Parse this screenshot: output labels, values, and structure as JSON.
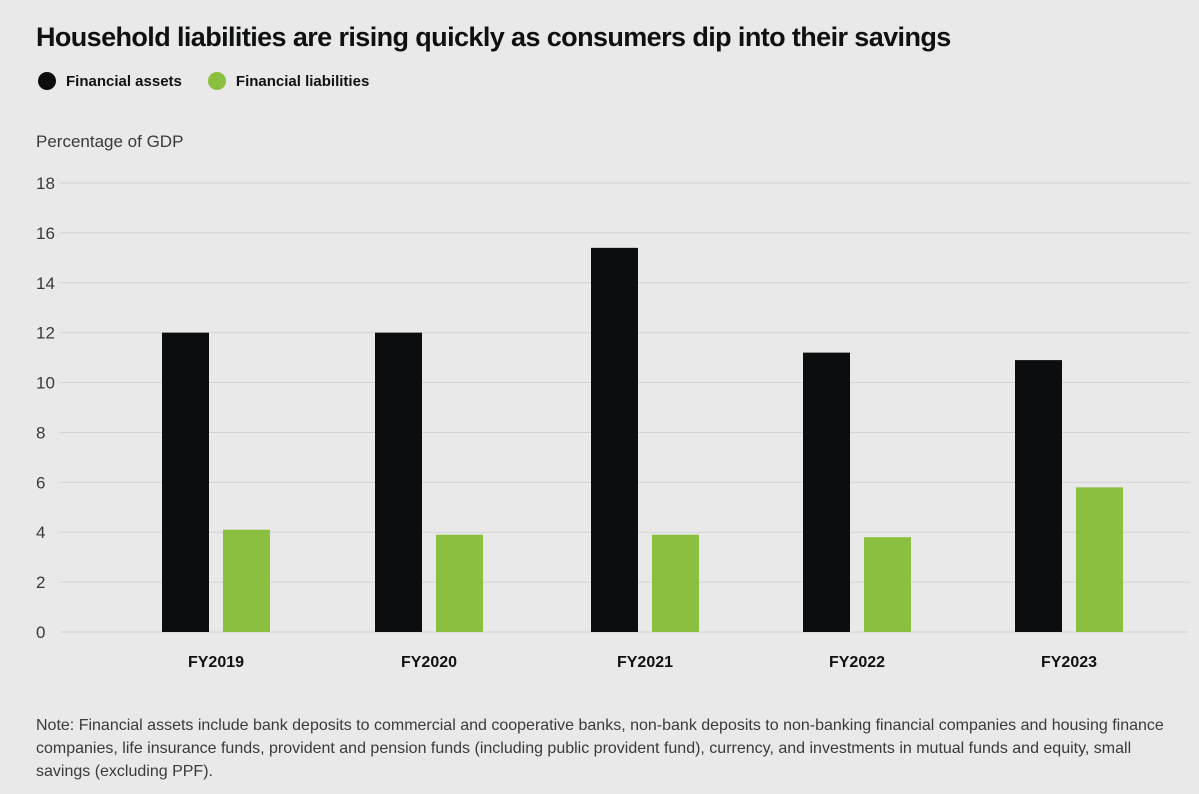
{
  "chart_data": {
    "type": "bar",
    "title": "Household liabilities are rising quickly as consumers dip into their savings",
    "ylabel": "Percentage of GDP",
    "xlabel": "",
    "categories": [
      "FY2019",
      "FY2020",
      "FY2021",
      "FY2022",
      "FY2023"
    ],
    "series": [
      {
        "name": "Financial assets",
        "color": "#0b0d0e",
        "values": [
          12.0,
          12.0,
          15.4,
          11.2,
          10.9
        ]
      },
      {
        "name": "Financial liabilities",
        "color": "#8bbf3f",
        "values": [
          4.1,
          3.9,
          3.9,
          3.8,
          5.8
        ]
      }
    ],
    "ylim": [
      0,
      18
    ],
    "yticks": [
      0,
      2,
      4,
      6,
      8,
      10,
      12,
      14,
      16,
      18
    ],
    "grid": true,
    "legend_position": "top-left"
  },
  "note": "Note: Financial assets include bank deposits to commercial and cooperative banks, non-bank deposits to non-banking financial companies and housing finance companies, life insurance funds, provident and pension funds (including public provident fund), currency, and investments in mutual funds and equity, small savings (excluding PPF)."
}
